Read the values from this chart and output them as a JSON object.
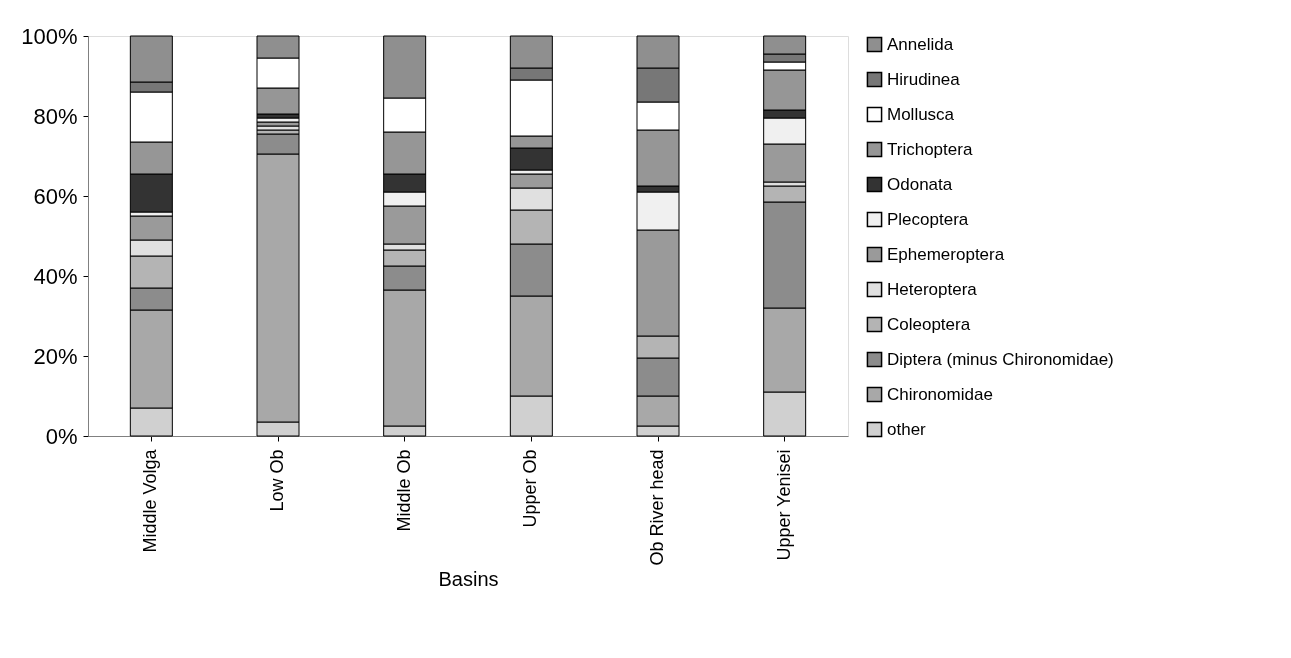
{
  "chart_data": {
    "type": "bar",
    "stacked": true,
    "xlabel": "Basins",
    "categories": [
      "Middle Volga",
      "Low Ob",
      "Middle Ob",
      "Upper Ob",
      "Ob River head",
      "Upper Yenisei"
    ],
    "ylim": [
      0,
      100
    ],
    "yticks": [
      {
        "value": 0,
        "label": "0%"
      },
      {
        "value": 20,
        "label": "20%"
      },
      {
        "value": 40,
        "label": "40%"
      },
      {
        "value": 60,
        "label": "60%"
      },
      {
        "value": 80,
        "label": "80%"
      },
      {
        "value": 100,
        "label": "100%"
      }
    ],
    "legend": "right",
    "grid": false,
    "series": [
      {
        "name": "other",
        "color": "#d0d0d0",
        "values": [
          7,
          3.5,
          2.5,
          10,
          2.5,
          11
        ]
      },
      {
        "name": "Chironomidae",
        "color": "#a8a8a8",
        "values": [
          24.5,
          67,
          34,
          25,
          7.5,
          21
        ]
      },
      {
        "name": "Diptera (minus Chironomidae)",
        "color": "#8c8c8c",
        "values": [
          5.5,
          5,
          6,
          13,
          9.5,
          26.5
        ]
      },
      {
        "name": "Coleoptera",
        "color": "#b4b4b4",
        "values": [
          8,
          1,
          4,
          8.5,
          5.5,
          4
        ]
      },
      {
        "name": "Heteroptera",
        "color": "#e0e0e0",
        "values": [
          4,
          1,
          1.5,
          5.5,
          null,
          1
        ]
      },
      {
        "name": "Ephemeroptera",
        "color": "#9a9a9a",
        "values": [
          6,
          1,
          9.5,
          3.5,
          26.5,
          9.5
        ]
      },
      {
        "name": "Plecoptera",
        "color": "#f0f0f0",
        "values": [
          1,
          1,
          3.5,
          1,
          9.5,
          6.5
        ]
      },
      {
        "name": "Odonata",
        "color": "#333333",
        "values": [
          9.5,
          1,
          4.5,
          5.5,
          1.5,
          2
        ]
      },
      {
        "name": "Trichoptera",
        "color": "#969696",
        "values": [
          8,
          6.5,
          10.5,
          3,
          14,
          10
        ]
      },
      {
        "name": "Mollusca",
        "color": "#ffffff",
        "values": [
          12.5,
          7.5,
          8.5,
          14,
          7,
          2
        ]
      },
      {
        "name": "Hirudinea",
        "color": "#777777",
        "values": [
          2.5,
          null,
          null,
          3,
          8.5,
          2
        ]
      },
      {
        "name": "Annelida",
        "color": "#8f8f8f",
        "values": [
          11.5,
          5.5,
          15.5,
          8,
          8,
          4.5
        ]
      }
    ]
  }
}
